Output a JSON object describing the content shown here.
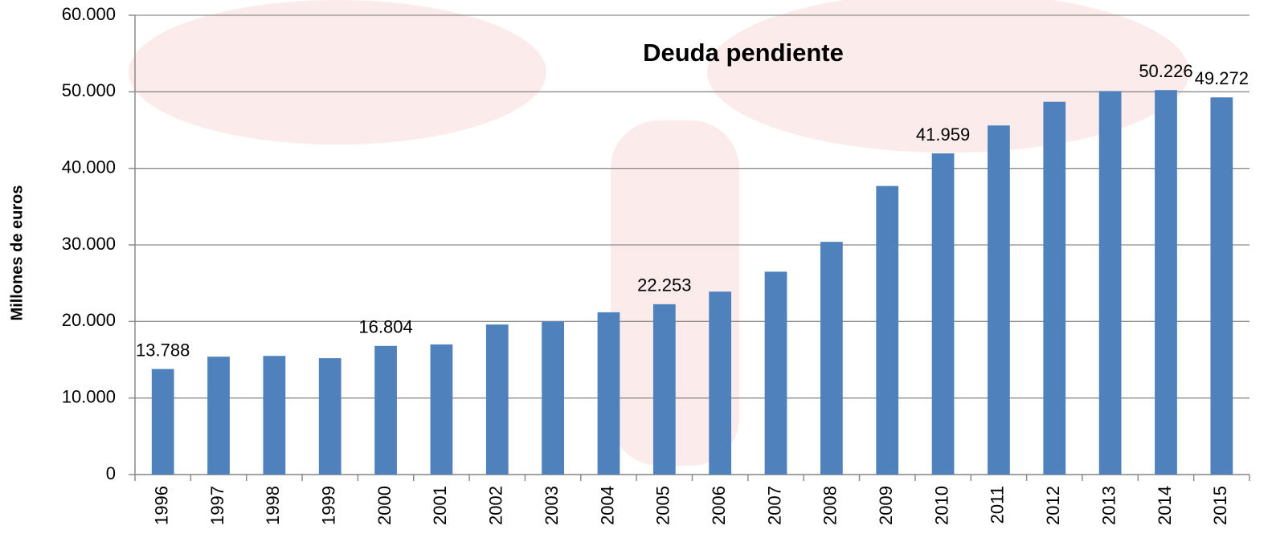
{
  "chart_data": {
    "type": "bar",
    "title": "Deuda pendiente",
    "y_label": "Millones de euros",
    "categories": [
      "1996",
      "1997",
      "1998",
      "1999",
      "2000",
      "2001",
      "2002",
      "2003",
      "2004",
      "2005",
      "2006",
      "2007",
      "2008",
      "2009",
      "2010",
      "2011",
      "2012",
      "2013",
      "2014",
      "2015"
    ],
    "values": [
      13788,
      15400,
      15500,
      15200,
      16804,
      17000,
      19600,
      20000,
      21200,
      22253,
      23900,
      26500,
      30400,
      37700,
      41959,
      45600,
      48700,
      50100,
      50226,
      49272
    ],
    "value_labels": [
      "13.788",
      null,
      null,
      null,
      "16.804",
      null,
      null,
      null,
      null,
      "22.253",
      null,
      null,
      null,
      null,
      "41.959",
      null,
      null,
      null,
      "50.226",
      "49.272"
    ],
    "color": "#4f81bd",
    "ylim": [
      0,
      60000
    ],
    "yticks": [
      0,
      {
        "value": 10000,
        "label": "10.000"
      },
      {
        "value": 20000,
        "label": "20.000"
      },
      {
        "value": 30000,
        "label": "30.000"
      },
      {
        "value": 40000,
        "label": "40.000"
      },
      {
        "value": 50000,
        "label": "50.000"
      },
      {
        "value": 60000,
        "label": "60.000"
      }
    ],
    "grid": true
  }
}
